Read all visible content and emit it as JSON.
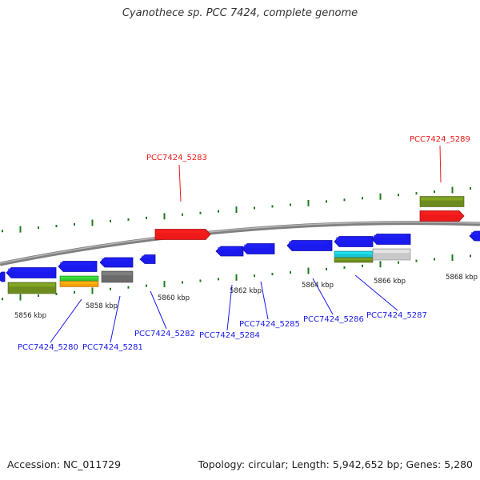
{
  "title": "Cyanothece sp. PCC 7424, complete genome",
  "footer": {
    "accession": "Accession: NC_011729",
    "topology": "Topology: circular; Length: 5,942,652 bp; Genes: 5,280"
  },
  "colors": {
    "backbone": "#808080",
    "forward_gene": "#1a1aee",
    "highlight_gene": "#ee1a1a",
    "label_blue": "#1a1aee",
    "label_red": "#ee1a1a",
    "tick": "#1f7a1f",
    "olive": "#6e8c1e",
    "green": "#33cc33",
    "orange": "#f59e0b",
    "gray": "#6b6b6b",
    "cyan": "#19c6d6",
    "light_gray": "#c9c9c9"
  },
  "scale_labels": [
    "5856 kbp",
    "5858 kbp",
    "5860 kbp",
    "5862 kbp",
    "5864 kbp",
    "5866 kbp",
    "5868 kbp"
  ],
  "gene_labels": [
    {
      "id": "PCC7424_5280",
      "color": "blue"
    },
    {
      "id": "PCC7424_5281",
      "color": "blue"
    },
    {
      "id": "PCC7424_5282",
      "color": "blue"
    },
    {
      "id": "PCC7424_5283",
      "color": "red"
    },
    {
      "id": "PCC7424_5284",
      "color": "blue"
    },
    {
      "id": "PCC7424_5285",
      "color": "blue"
    },
    {
      "id": "PCC7424_5286",
      "color": "blue"
    },
    {
      "id": "PCC7424_5287",
      "color": "blue"
    },
    {
      "id": "PCC7424_5289",
      "color": "red"
    }
  ]
}
